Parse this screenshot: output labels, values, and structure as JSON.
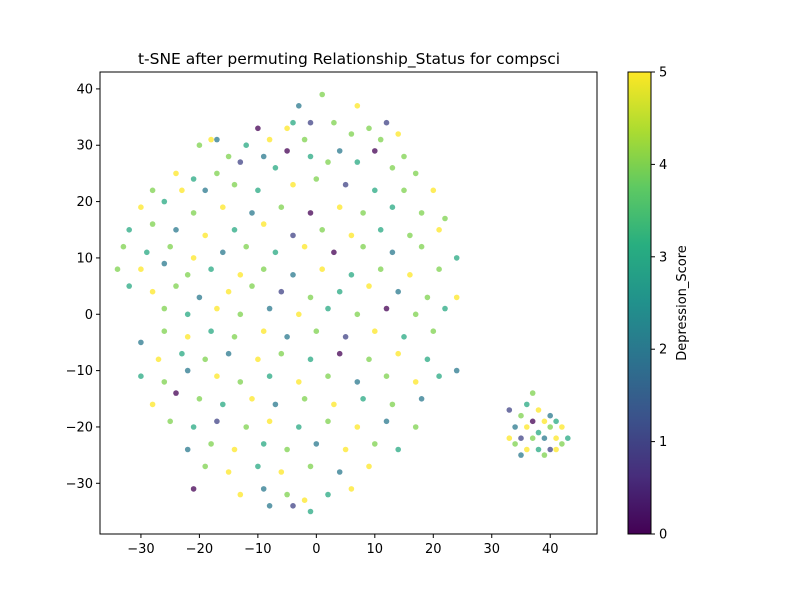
{
  "chart_data": {
    "type": "scatter",
    "title": "t-SNE after permuting Relationship_Status for compsci",
    "xlabel": "",
    "ylabel": "",
    "xlim": [
      -37,
      48
    ],
    "ylim": [
      -39,
      43
    ],
    "x_ticks": [
      -30,
      -20,
      -10,
      0,
      10,
      20,
      30,
      40
    ],
    "y_ticks": [
      -30,
      -20,
      -10,
      0,
      10,
      20,
      30,
      40
    ],
    "grid": false,
    "legend": "none",
    "point_opacity": 0.75,
    "colorbar": {
      "label": "Depression_Score",
      "min": 0,
      "max": 5,
      "ticks": [
        0,
        1,
        2,
        3,
        4,
        5
      ],
      "colormap": "viridis",
      "stops": [
        "#440154",
        "#472d7b",
        "#3b528b",
        "#2c728e",
        "#21918c",
        "#28ae80",
        "#5ec962",
        "#addc30",
        "#fde725"
      ]
    },
    "points": [
      {
        "x": 1,
        "y": 39,
        "v": 4
      },
      {
        "x": -3,
        "y": 37,
        "v": 2
      },
      {
        "x": 7,
        "y": 37,
        "v": 5
      },
      {
        "x": -5,
        "y": 33,
        "v": 5
      },
      {
        "x": -4,
        "y": 34,
        "v": 3
      },
      {
        "x": -1,
        "y": 34,
        "v": 1
      },
      {
        "x": 3,
        "y": 34,
        "v": 4
      },
      {
        "x": 9,
        "y": 33,
        "v": 4
      },
      {
        "x": 12,
        "y": 34,
        "v": 1
      },
      {
        "x": -10,
        "y": 33,
        "v": 0
      },
      {
        "x": -18,
        "y": 31,
        "v": 5
      },
      {
        "x": -17,
        "y": 31,
        "v": 2
      },
      {
        "x": -12,
        "y": 30,
        "v": 3
      },
      {
        "x": -8,
        "y": 31,
        "v": 5
      },
      {
        "x": -2,
        "y": 31,
        "v": 4
      },
      {
        "x": 6,
        "y": 32,
        "v": 4
      },
      {
        "x": 11,
        "y": 31,
        "v": 4
      },
      {
        "x": 14,
        "y": 32,
        "v": 5
      },
      {
        "x": -20,
        "y": 30,
        "v": 4
      },
      {
        "x": -15,
        "y": 28,
        "v": 4
      },
      {
        "x": -9,
        "y": 28,
        "v": 2
      },
      {
        "x": -5,
        "y": 29,
        "v": 0
      },
      {
        "x": -1,
        "y": 28,
        "v": 3
      },
      {
        "x": 4,
        "y": 29,
        "v": 2
      },
      {
        "x": 10,
        "y": 29,
        "v": 0
      },
      {
        "x": 15,
        "y": 28,
        "v": 4
      },
      {
        "x": -24,
        "y": 25,
        "v": 5
      },
      {
        "x": -21,
        "y": 24,
        "v": 3
      },
      {
        "x": -17,
        "y": 25,
        "v": 4
      },
      {
        "x": -13,
        "y": 27,
        "v": 1
      },
      {
        "x": -7,
        "y": 26,
        "v": 3
      },
      {
        "x": 2,
        "y": 27,
        "v": 4
      },
      {
        "x": 7,
        "y": 27,
        "v": 3
      },
      {
        "x": 13,
        "y": 26,
        "v": 4
      },
      {
        "x": 17,
        "y": 25,
        "v": 4
      },
      {
        "x": -28,
        "y": 22,
        "v": 4
      },
      {
        "x": -23,
        "y": 22,
        "v": 5
      },
      {
        "x": -19,
        "y": 22,
        "v": 2
      },
      {
        "x": -14,
        "y": 23,
        "v": 4
      },
      {
        "x": -10,
        "y": 22,
        "v": 3
      },
      {
        "x": -4,
        "y": 23,
        "v": 5
      },
      {
        "x": 0,
        "y": 24,
        "v": 4
      },
      {
        "x": 5,
        "y": 23,
        "v": 1
      },
      {
        "x": 10,
        "y": 22,
        "v": 3
      },
      {
        "x": 15,
        "y": 22,
        "v": 4
      },
      {
        "x": 20,
        "y": 22,
        "v": 5
      },
      {
        "x": -30,
        "y": 19,
        "v": 5
      },
      {
        "x": -26,
        "y": 20,
        "v": 3
      },
      {
        "x": -21,
        "y": 18,
        "v": 4
      },
      {
        "x": -16,
        "y": 19,
        "v": 5
      },
      {
        "x": -11,
        "y": 18,
        "v": 2
      },
      {
        "x": -6,
        "y": 19,
        "v": 4
      },
      {
        "x": -1,
        "y": 18,
        "v": 0
      },
      {
        "x": 4,
        "y": 19,
        "v": 5
      },
      {
        "x": 8,
        "y": 18,
        "v": 4
      },
      {
        "x": 13,
        "y": 19,
        "v": 3
      },
      {
        "x": 18,
        "y": 18,
        "v": 4
      },
      {
        "x": 22,
        "y": 17,
        "v": 4
      },
      {
        "x": -32,
        "y": 15,
        "v": 3
      },
      {
        "x": -28,
        "y": 16,
        "v": 4
      },
      {
        "x": -24,
        "y": 15,
        "v": 2
      },
      {
        "x": -19,
        "y": 14,
        "v": 5
      },
      {
        "x": -14,
        "y": 15,
        "v": 3
      },
      {
        "x": -9,
        "y": 16,
        "v": 5
      },
      {
        "x": -4,
        "y": 14,
        "v": 1
      },
      {
        "x": 1,
        "y": 15,
        "v": 4
      },
      {
        "x": 6,
        "y": 14,
        "v": 5
      },
      {
        "x": 11,
        "y": 15,
        "v": 3
      },
      {
        "x": 16,
        "y": 14,
        "v": 4
      },
      {
        "x": 21,
        "y": 15,
        "v": 5
      },
      {
        "x": -33,
        "y": 12,
        "v": 4
      },
      {
        "x": -29,
        "y": 11,
        "v": 3
      },
      {
        "x": -25,
        "y": 12,
        "v": 4
      },
      {
        "x": -21,
        "y": 10,
        "v": 5
      },
      {
        "x": -16,
        "y": 11,
        "v": 2
      },
      {
        "x": -12,
        "y": 12,
        "v": 4
      },
      {
        "x": -7,
        "y": 11,
        "v": 3
      },
      {
        "x": -2,
        "y": 12,
        "v": 5
      },
      {
        "x": 3,
        "y": 11,
        "v": 0
      },
      {
        "x": 8,
        "y": 12,
        "v": 4
      },
      {
        "x": 13,
        "y": 11,
        "v": 2
      },
      {
        "x": 18,
        "y": 12,
        "v": 4
      },
      {
        "x": 24,
        "y": 10,
        "v": 3
      },
      {
        "x": -34,
        "y": 8,
        "v": 4
      },
      {
        "x": -30,
        "y": 8,
        "v": 5
      },
      {
        "x": -26,
        "y": 9,
        "v": 2
      },
      {
        "x": -22,
        "y": 7,
        "v": 4
      },
      {
        "x": -18,
        "y": 8,
        "v": 3
      },
      {
        "x": -13,
        "y": 7,
        "v": 5
      },
      {
        "x": -9,
        "y": 8,
        "v": 4
      },
      {
        "x": -4,
        "y": 7,
        "v": 2
      },
      {
        "x": 1,
        "y": 8,
        "v": 5
      },
      {
        "x": 6,
        "y": 7,
        "v": 3
      },
      {
        "x": 11,
        "y": 8,
        "v": 4
      },
      {
        "x": 16,
        "y": 7,
        "v": 5
      },
      {
        "x": 21,
        "y": 8,
        "v": 4
      },
      {
        "x": -32,
        "y": 5,
        "v": 3
      },
      {
        "x": -28,
        "y": 4,
        "v": 5
      },
      {
        "x": -24,
        "y": 5,
        "v": 4
      },
      {
        "x": -20,
        "y": 3,
        "v": 2
      },
      {
        "x": -15,
        "y": 4,
        "v": 5
      },
      {
        "x": -11,
        "y": 5,
        "v": 4
      },
      {
        "x": -6,
        "y": 4,
        "v": 1
      },
      {
        "x": -1,
        "y": 3,
        "v": 4
      },
      {
        "x": 4,
        "y": 4,
        "v": 3
      },
      {
        "x": 9,
        "y": 5,
        "v": 5
      },
      {
        "x": 14,
        "y": 4,
        "v": 2
      },
      {
        "x": 19,
        "y": 3,
        "v": 4
      },
      {
        "x": 24,
        "y": 3,
        "v": 5
      },
      {
        "x": -26,
        "y": 1,
        "v": 4
      },
      {
        "x": -22,
        "y": 0,
        "v": 3
      },
      {
        "x": -17,
        "y": 1,
        "v": 5
      },
      {
        "x": -13,
        "y": 0,
        "v": 4
      },
      {
        "x": -8,
        "y": 1,
        "v": 2
      },
      {
        "x": -3,
        "y": 0,
        "v": 5
      },
      {
        "x": 2,
        "y": 1,
        "v": 3
      },
      {
        "x": 7,
        "y": 0,
        "v": 4
      },
      {
        "x": 12,
        "y": 1,
        "v": 0
      },
      {
        "x": 17,
        "y": 0,
        "v": 4
      },
      {
        "x": 22,
        "y": 1,
        "v": 3
      },
      {
        "x": -30,
        "y": -5,
        "v": 2
      },
      {
        "x": -26,
        "y": -3,
        "v": 4
      },
      {
        "x": -22,
        "y": -4,
        "v": 5
      },
      {
        "x": -18,
        "y": -3,
        "v": 3
      },
      {
        "x": -14,
        "y": -4,
        "v": 4
      },
      {
        "x": -9,
        "y": -3,
        "v": 5
      },
      {
        "x": -5,
        "y": -4,
        "v": 2
      },
      {
        "x": 0,
        "y": -3,
        "v": 4
      },
      {
        "x": 5,
        "y": -4,
        "v": 1
      },
      {
        "x": 10,
        "y": -3,
        "v": 5
      },
      {
        "x": 15,
        "y": -4,
        "v": 3
      },
      {
        "x": 20,
        "y": -3,
        "v": 4
      },
      {
        "x": -27,
        "y": -8,
        "v": 5
      },
      {
        "x": -23,
        "y": -7,
        "v": 3
      },
      {
        "x": -19,
        "y": -8,
        "v": 4
      },
      {
        "x": -15,
        "y": -7,
        "v": 2
      },
      {
        "x": -10,
        "y": -8,
        "v": 5
      },
      {
        "x": -6,
        "y": -7,
        "v": 4
      },
      {
        "x": -1,
        "y": -8,
        "v": 3
      },
      {
        "x": 4,
        "y": -7,
        "v": 0
      },
      {
        "x": 9,
        "y": -8,
        "v": 4
      },
      {
        "x": 14,
        "y": -7,
        "v": 5
      },
      {
        "x": 19,
        "y": -8,
        "v": 3
      },
      {
        "x": 24,
        "y": -10,
        "v": 2
      },
      {
        "x": -30,
        "y": -11,
        "v": 3
      },
      {
        "x": -26,
        "y": -12,
        "v": 4
      },
      {
        "x": -22,
        "y": -10,
        "v": 2
      },
      {
        "x": -17,
        "y": -11,
        "v": 5
      },
      {
        "x": -13,
        "y": -12,
        "v": 4
      },
      {
        "x": -8,
        "y": -11,
        "v": 3
      },
      {
        "x": -3,
        "y": -12,
        "v": 5
      },
      {
        "x": 2,
        "y": -11,
        "v": 4
      },
      {
        "x": 7,
        "y": -12,
        "v": 2
      },
      {
        "x": 12,
        "y": -11,
        "v": 4
      },
      {
        "x": 17,
        "y": -12,
        "v": 5
      },
      {
        "x": 21,
        "y": -11,
        "v": 3
      },
      {
        "x": -28,
        "y": -16,
        "v": 5
      },
      {
        "x": -24,
        "y": -14,
        "v": 0
      },
      {
        "x": -20,
        "y": -15,
        "v": 4
      },
      {
        "x": -16,
        "y": -16,
        "v": 3
      },
      {
        "x": -11,
        "y": -15,
        "v": 5
      },
      {
        "x": -7,
        "y": -16,
        "v": 2
      },
      {
        "x": -2,
        "y": -15,
        "v": 4
      },
      {
        "x": 3,
        "y": -16,
        "v": 5
      },
      {
        "x": 8,
        "y": -15,
        "v": 3
      },
      {
        "x": 13,
        "y": -16,
        "v": 4
      },
      {
        "x": 18,
        "y": -15,
        "v": 2
      },
      {
        "x": -25,
        "y": -19,
        "v": 4
      },
      {
        "x": -21,
        "y": -20,
        "v": 3
      },
      {
        "x": -17,
        "y": -19,
        "v": 1
      },
      {
        "x": -12,
        "y": -20,
        "v": 4
      },
      {
        "x": -8,
        "y": -19,
        "v": 5
      },
      {
        "x": -3,
        "y": -20,
        "v": 3
      },
      {
        "x": 2,
        "y": -19,
        "v": 4
      },
      {
        "x": 7,
        "y": -20,
        "v": 5
      },
      {
        "x": 12,
        "y": -19,
        "v": 2
      },
      {
        "x": 17,
        "y": -20,
        "v": 4
      },
      {
        "x": -22,
        "y": -24,
        "v": 2
      },
      {
        "x": -18,
        "y": -23,
        "v": 4
      },
      {
        "x": -14,
        "y": -24,
        "v": 5
      },
      {
        "x": -9,
        "y": -23,
        "v": 3
      },
      {
        "x": -5,
        "y": -24,
        "v": 4
      },
      {
        "x": 0,
        "y": -23,
        "v": 2
      },
      {
        "x": 5,
        "y": -24,
        "v": 5
      },
      {
        "x": 10,
        "y": -23,
        "v": 4
      },
      {
        "x": 14,
        "y": -24,
        "v": 3
      },
      {
        "x": -19,
        "y": -27,
        "v": 4
      },
      {
        "x": -15,
        "y": -28,
        "v": 5
      },
      {
        "x": -10,
        "y": -27,
        "v": 3
      },
      {
        "x": -6,
        "y": -28,
        "v": 5
      },
      {
        "x": -1,
        "y": -27,
        "v": 4
      },
      {
        "x": 4,
        "y": -28,
        "v": 2
      },
      {
        "x": 9,
        "y": -27,
        "v": 5
      },
      {
        "x": -21,
        "y": -31,
        "v": 0
      },
      {
        "x": -13,
        "y": -32,
        "v": 5
      },
      {
        "x": -9,
        "y": -31,
        "v": 2
      },
      {
        "x": -5,
        "y": -32,
        "v": 4
      },
      {
        "x": -2,
        "y": -33,
        "v": 5
      },
      {
        "x": 2,
        "y": -32,
        "v": 3
      },
      {
        "x": 6,
        "y": -31,
        "v": 5
      },
      {
        "x": -8,
        "y": -34,
        "v": 2
      },
      {
        "x": -4,
        "y": -34,
        "v": 1
      },
      {
        "x": -1,
        "y": -35,
        "v": 3
      },
      {
        "x": 37,
        "y": -14,
        "v": 4
      },
      {
        "x": 36,
        "y": -16,
        "v": 3
      },
      {
        "x": 38,
        "y": -17,
        "v": 5
      },
      {
        "x": 40,
        "y": -18,
        "v": 2
      },
      {
        "x": 33,
        "y": -17,
        "v": 1
      },
      {
        "x": 35,
        "y": -18,
        "v": 4
      },
      {
        "x": 37,
        "y": -19,
        "v": 0
      },
      {
        "x": 39,
        "y": -19,
        "v": 5
      },
      {
        "x": 41,
        "y": -19,
        "v": 3
      },
      {
        "x": 34,
        "y": -20,
        "v": 2
      },
      {
        "x": 36,
        "y": -20,
        "v": 5
      },
      {
        "x": 38,
        "y": -21,
        "v": 3
      },
      {
        "x": 40,
        "y": -20,
        "v": 4
      },
      {
        "x": 42,
        "y": -20,
        "v": 5
      },
      {
        "x": 33,
        "y": -22,
        "v": 5
      },
      {
        "x": 35,
        "y": -22,
        "v": 1
      },
      {
        "x": 37,
        "y": -22,
        "v": 4
      },
      {
        "x": 39,
        "y": -22,
        "v": 2
      },
      {
        "x": 41,
        "y": -22,
        "v": 5
      },
      {
        "x": 43,
        "y": -22,
        "v": 3
      },
      {
        "x": 34,
        "y": -23,
        "v": 4
      },
      {
        "x": 36,
        "y": -24,
        "v": 5
      },
      {
        "x": 38,
        "y": -24,
        "v": 3
      },
      {
        "x": 40,
        "y": -24,
        "v": 1
      },
      {
        "x": 42,
        "y": -23,
        "v": 4
      },
      {
        "x": 35,
        "y": -25,
        "v": 2
      },
      {
        "x": 39,
        "y": -25,
        "v": 4
      },
      {
        "x": 41,
        "y": -24,
        "v": 5
      }
    ]
  }
}
